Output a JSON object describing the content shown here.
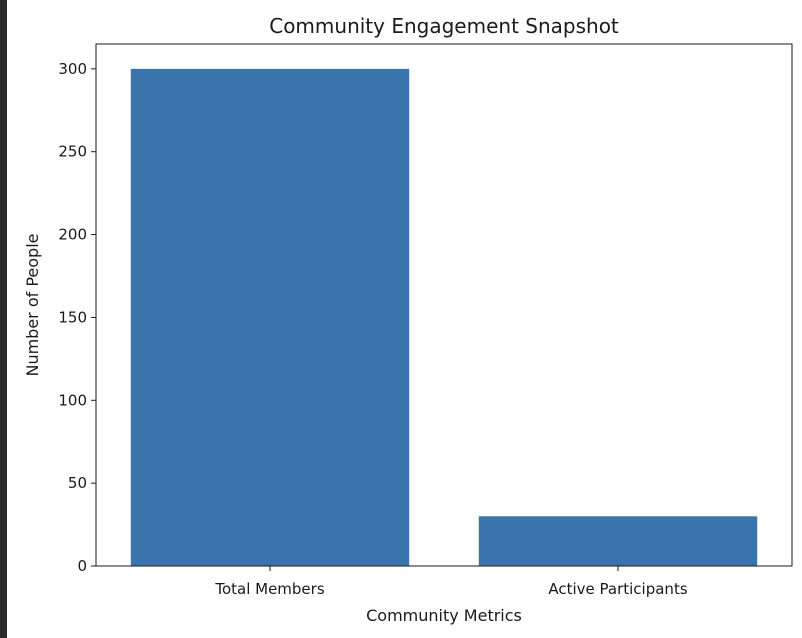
{
  "chart_data": {
    "type": "bar",
    "title": "Community Engagement Snapshot",
    "xlabel": "Community Metrics",
    "ylabel": "Number of People",
    "categories": [
      "Total Members",
      "Active Participants"
    ],
    "values": [
      300,
      30
    ],
    "ylim": [
      0,
      315
    ],
    "yticks": [
      0,
      50,
      100,
      150,
      200,
      250,
      300
    ],
    "grid": false,
    "bar_color": "#3a74ad"
  }
}
